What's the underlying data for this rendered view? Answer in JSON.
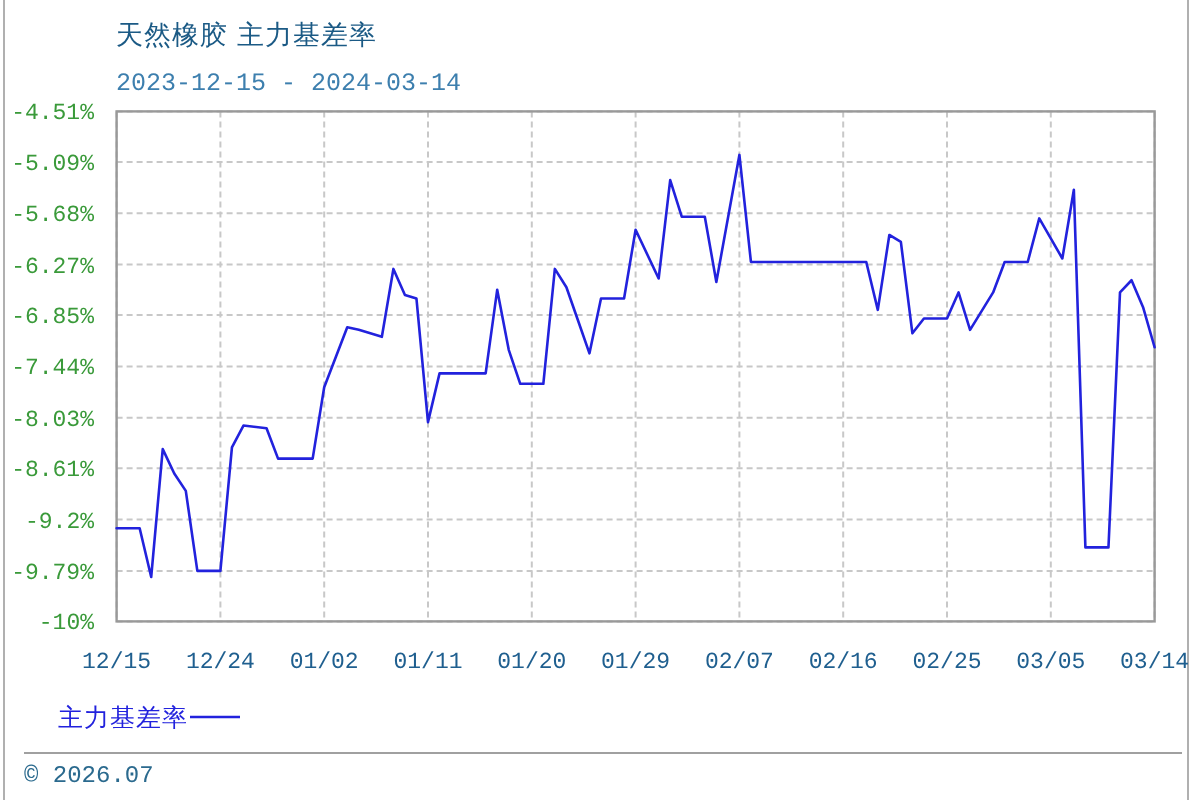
{
  "chart_data": {
    "type": "line",
    "title": "天然橡胶 主力基差率",
    "subtitle": "2023-12-15 - 2024-03-14",
    "x": [
      "2023-12-15",
      "2023-12-17",
      "2023-12-18",
      "2023-12-19",
      "2023-12-20",
      "2023-12-21",
      "2023-12-22",
      "2023-12-24",
      "2023-12-25",
      "2023-12-26",
      "2023-12-28",
      "2023-12-29",
      "2024-01-01",
      "2024-01-02",
      "2024-01-04",
      "2024-01-05",
      "2024-01-07",
      "2024-01-08",
      "2024-01-09",
      "2024-01-10",
      "2024-01-11",
      "2024-01-12",
      "2024-01-16",
      "2024-01-17",
      "2024-01-18",
      "2024-01-19",
      "2024-01-21",
      "2024-01-22",
      "2024-01-23",
      "2024-01-24",
      "2024-01-25",
      "2024-01-26",
      "2024-01-28",
      "2024-01-29",
      "2024-01-31",
      "2024-02-01",
      "2024-02-02",
      "2024-02-04",
      "2024-02-05",
      "2024-02-07",
      "2024-02-08",
      "2024-02-18",
      "2024-02-19",
      "2024-02-20",
      "2024-02-21",
      "2024-02-22",
      "2024-02-23",
      "2024-02-25",
      "2024-02-26",
      "2024-02-27",
      "2024-02-29",
      "2024-03-01",
      "2024-03-03",
      "2024-03-04",
      "2024-03-06",
      "2024-03-07",
      "2024-03-08",
      "2024-03-10",
      "2024-03-11",
      "2024-03-12",
      "2024-03-13",
      "2024-03-14"
    ],
    "series": [
      {
        "name": "主力基差率",
        "color": "#2222dd",
        "values": [
          -9.3,
          -9.3,
          -9.86,
          -8.39,
          -8.67,
          -8.87,
          -9.79,
          -9.79,
          -8.37,
          -8.12,
          -8.15,
          -8.5,
          -8.5,
          -7.68,
          -6.99,
          -7.02,
          -7.1,
          -6.32,
          -6.62,
          -6.66,
          -8.08,
          -7.52,
          -7.52,
          -6.56,
          -7.25,
          -7.64,
          -7.64,
          -6.32,
          -6.53,
          -6.91,
          -7.29,
          -6.66,
          -6.66,
          -5.87,
          -6.43,
          -5.3,
          -5.72,
          -5.72,
          -6.47,
          -5.01,
          -6.24,
          -6.24,
          -6.79,
          -5.93,
          -6.01,
          -7.06,
          -6.89,
          -6.89,
          -6.59,
          -7.02,
          -6.59,
          -6.24,
          -6.24,
          -5.74,
          -6.2,
          -5.41,
          -9.52,
          -9.52,
          -6.59,
          -6.45,
          -6.76,
          -7.22
        ]
      }
    ],
    "xlim": [
      "2023-12-15",
      "2024-03-14"
    ],
    "xticks": [
      {
        "value": "2023-12-15",
        "label": "12/15"
      },
      {
        "value": "2023-12-24",
        "label": "12/24"
      },
      {
        "value": "2024-01-02",
        "label": "01/02"
      },
      {
        "value": "2024-01-11",
        "label": "01/11"
      },
      {
        "value": "2024-01-20",
        "label": "01/20"
      },
      {
        "value": "2024-01-29",
        "label": "01/29"
      },
      {
        "value": "2024-02-07",
        "label": "02/07"
      },
      {
        "value": "2024-02-16",
        "label": "02/16"
      },
      {
        "value": "2024-02-25",
        "label": "02/25"
      },
      {
        "value": "2024-03-05",
        "label": "03/05"
      },
      {
        "value": "2024-03-14",
        "label": "03/14"
      }
    ],
    "ylim": [
      -10.37,
      -4.51
    ],
    "yticks": [
      {
        "value": -4.51,
        "label": "-4.51%"
      },
      {
        "value": -5.09,
        "label": "-5.09%"
      },
      {
        "value": -5.68,
        "label": "-5.68%"
      },
      {
        "value": -6.27,
        "label": "-6.27%"
      },
      {
        "value": -6.85,
        "label": "-6.85%"
      },
      {
        "value": -7.44,
        "label": "-7.44%"
      },
      {
        "value": -8.03,
        "label": "-8.03%"
      },
      {
        "value": -8.61,
        "label": "-8.61%"
      },
      {
        "value": -9.2,
        "label": "-9.2%"
      },
      {
        "value": -9.79,
        "label": "-9.79%"
      },
      {
        "value": -10.37,
        "label": "-10%"
      }
    ],
    "grid": true,
    "legend": "bottom left",
    "annotations": [
      "© 2026.07"
    ]
  }
}
